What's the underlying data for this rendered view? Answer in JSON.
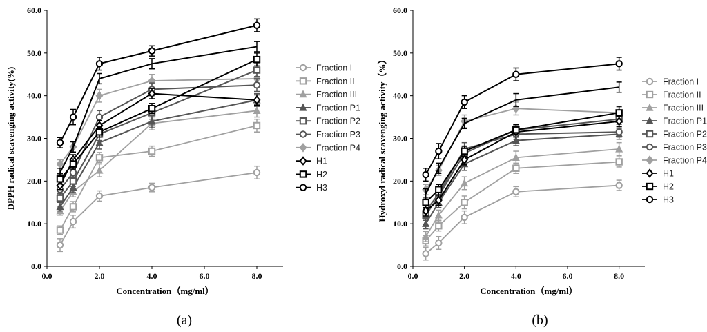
{
  "figure_labels": [
    "(a)",
    "(b)"
  ],
  "colors": {
    "gray": "#a0a0a0",
    "dark": "#555555",
    "black": "#000000"
  },
  "chart_data": [
    {
      "type": "line",
      "panel": "(a)",
      "xlabel": "Concentration（mg/ml）",
      "ylabel": "DPPH radical scavenging activity(%)",
      "xlim": [
        0,
        9.0
      ],
      "ylim": [
        0,
        60
      ],
      "xticks": [
        "0.0",
        "2.0",
        "4.0",
        "6.0",
        "8.0"
      ],
      "xtick_values": [
        0,
        2,
        4,
        6,
        8
      ],
      "yticks": [
        "0.0",
        "10.0",
        "20.0",
        "30.0",
        "40.0",
        "50.0",
        "60.0"
      ],
      "ytick_values": [
        0,
        10,
        20,
        30,
        40,
        50,
        60
      ],
      "x": [
        0.5,
        1,
        2,
        4,
        8
      ],
      "series": [
        {
          "name": "Fraction I",
          "marker": "circle",
          "color": "gray",
          "values": [
            5,
            10.5,
            16.5,
            18.5,
            22
          ],
          "err": [
            1.5,
            1.5,
            1.2,
            1.0,
            1.5
          ]
        },
        {
          "name": "Fraction II",
          "marker": "square",
          "color": "gray",
          "values": [
            8.5,
            14,
            25.5,
            27,
            33
          ],
          "err": [
            1.0,
            1.2,
            1.2,
            1.2,
            1.5
          ]
        },
        {
          "name": "Fraction III",
          "marker": "triangle",
          "color": "gray",
          "values": [
            13,
            17.5,
            22.5,
            33.5,
            36.5
          ],
          "err": [
            1.0,
            1.2,
            1.5,
            1.5,
            1.5
          ]
        },
        {
          "name": "Fraction P1",
          "marker": "triangle",
          "color": "dark",
          "values": [
            14,
            18.5,
            29,
            34,
            39
          ],
          "err": [
            1.0,
            1.2,
            1.5,
            1.5,
            1.5
          ]
        },
        {
          "name": "Fraction P2",
          "marker": "square",
          "color": "dark",
          "values": [
            16,
            20,
            31,
            36,
            46
          ],
          "err": [
            1.0,
            1.2,
            1.5,
            1.5,
            1.5
          ]
        },
        {
          "name": "Fraction P3",
          "marker": "circle",
          "color": "dark",
          "values": [
            18,
            22,
            35,
            41.5,
            42.5
          ],
          "err": [
            1.0,
            1.2,
            1.5,
            1.5,
            1.5
          ]
        },
        {
          "name": "Fraction P4",
          "marker": "diamond",
          "color": "gray",
          "values": [
            24,
            28,
            40,
            43.5,
            44
          ],
          "err": [
            1.0,
            1.2,
            1.5,
            1.5,
            1.5
          ]
        },
        {
          "name": "H1",
          "marker": "diamond",
          "color": "black",
          "values": [
            19,
            25,
            33,
            40.5,
            39
          ],
          "err": [
            1.0,
            1.2,
            1.2,
            1.2,
            1.2
          ]
        },
        {
          "name": "H2",
          "marker": "square",
          "color": "black",
          "values": [
            20.5,
            24,
            31.5,
            37,
            48.5
          ],
          "err": [
            1.2,
            1.2,
            1.2,
            1.2,
            1.5
          ]
        },
        {
          "name": "H3",
          "marker": "circle",
          "color": "black",
          "values": [
            29,
            35,
            47.5,
            50.5,
            56.5
          ],
          "err": [
            1.2,
            1.8,
            1.5,
            1.2,
            1.5
          ]
        },
        {
          "name": "",
          "marker": "none",
          "color": "black",
          "values": [
            22,
            28,
            44,
            47.5,
            51.5
          ],
          "err": [
            1.0,
            1.2,
            1.2,
            1.2,
            1.2
          ]
        }
      ]
    },
    {
      "type": "line",
      "panel": "(b)",
      "xlabel": "Concentration（mg/ml）",
      "ylabel": "Hydroxyl radical scavenging activity（%）",
      "xlim": [
        0,
        9.0
      ],
      "ylim": [
        0,
        60
      ],
      "xticks": [
        "0.0",
        "2.0",
        "4.0",
        "6.0",
        "8.0"
      ],
      "xtick_values": [
        0,
        2,
        4,
        6,
        8
      ],
      "yticks": [
        "0.0",
        "10.0",
        "20.0",
        "30.0",
        "40.0",
        "50.0",
        "60.0"
      ],
      "ytick_values": [
        0,
        10,
        20,
        30,
        40,
        50,
        60
      ],
      "x": [
        0.5,
        1,
        2,
        4,
        8
      ],
      "series": [
        {
          "name": "Fraction I",
          "marker": "circle",
          "color": "gray",
          "values": [
            3,
            5.5,
            11.5,
            17.5,
            19
          ],
          "err": [
            1.5,
            1.5,
            1.5,
            1.2,
            1.2
          ]
        },
        {
          "name": "Fraction II",
          "marker": "square",
          "color": "gray",
          "values": [
            6,
            9.5,
            15,
            23,
            24.5
          ],
          "err": [
            1.2,
            1.2,
            1.5,
            1.2,
            1.2
          ]
        },
        {
          "name": "Fraction III",
          "marker": "triangle",
          "color": "gray",
          "values": [
            7,
            12,
            19.5,
            25.5,
            27.5
          ],
          "err": [
            1.2,
            1.2,
            1.5,
            1.5,
            1.5
          ]
        },
        {
          "name": "Fraction P1",
          "marker": "triangle",
          "color": "dark",
          "values": [
            10,
            15,
            24,
            29.5,
            31
          ],
          "err": [
            1.2,
            1.2,
            1.5,
            1.2,
            1.2
          ]
        },
        {
          "name": "Fraction P2",
          "marker": "square",
          "color": "dark",
          "values": [
            12,
            16.5,
            26.5,
            32,
            34.5
          ],
          "err": [
            1.2,
            1.2,
            1.5,
            1.2,
            1.2
          ]
        },
        {
          "name": "Fraction P3",
          "marker": "circle",
          "color": "dark",
          "values": [
            13,
            17,
            27.5,
            31,
            31.5
          ],
          "err": [
            1.2,
            1.2,
            1.5,
            1.2,
            1.2
          ]
        },
        {
          "name": "Fraction P4",
          "marker": "diamond",
          "color": "gray",
          "values": [
            18,
            22.5,
            34,
            37,
            36
          ],
          "err": [
            1.2,
            1.2,
            1.5,
            1.5,
            1.2
          ]
        },
        {
          "name": "H1",
          "marker": "diamond",
          "color": "black",
          "values": [
            13,
            15.5,
            25,
            31.5,
            34
          ],
          "err": [
            1.2,
            1.2,
            1.2,
            1.2,
            1.2
          ]
        },
        {
          "name": "H2",
          "marker": "square",
          "color": "black",
          "values": [
            15,
            18,
            27,
            32,
            36
          ],
          "err": [
            1.2,
            1.2,
            1.2,
            1.2,
            1.5
          ]
        },
        {
          "name": "H3",
          "marker": "circle",
          "color": "black",
          "values": [
            21.5,
            27,
            38.5,
            45,
            47.5
          ],
          "err": [
            1.5,
            1.8,
            1.5,
            1.5,
            1.5
          ]
        },
        {
          "name": "",
          "marker": "none",
          "color": "black",
          "values": [
            17,
            23,
            33.5,
            39,
            42
          ],
          "err": [
            1.2,
            1.2,
            1.2,
            1.5,
            1.2
          ]
        }
      ]
    }
  ]
}
